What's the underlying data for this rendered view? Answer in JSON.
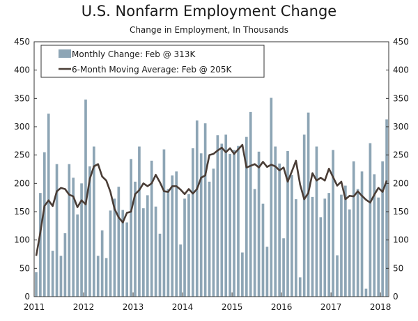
{
  "chart_data": {
    "type": "bar",
    "title": "U.S. Nonfarm Employment Change",
    "subtitle": "Change in Employment, In Thousands",
    "xlabel": "",
    "ylabel": "",
    "ylim": [
      0,
      450
    ],
    "yticks": [
      0,
      50,
      100,
      150,
      200,
      250,
      300,
      350,
      400,
      450
    ],
    "ytick_labels": [
      "0",
      "50",
      "100",
      "150",
      "200",
      "250",
      "300",
      "350",
      "400",
      "450"
    ],
    "xticks": [
      2011,
      2012,
      2013,
      2014,
      2015,
      2016,
      2017,
      2018
    ],
    "xtick_labels": [
      "2011",
      "2012",
      "2013",
      "2014",
      "2015",
      "2016",
      "2017",
      "2018"
    ],
    "x_start": "2011-01",
    "x_end": "2018-02",
    "grid": false,
    "legend_position": "top-left",
    "colors": {
      "bars": "#8da5b5",
      "line": "#4a3d36"
    },
    "series": [
      {
        "name": "Monthly Change: Feb @ 313K",
        "type": "bar",
        "values": [
          43,
          183,
          255,
          323,
          81,
          234,
          72,
          112,
          234,
          210,
          145,
          200,
          348,
          230,
          265,
          72,
          117,
          68,
          152,
          173,
          194,
          153,
          131,
          243,
          203,
          265,
          156,
          179,
          240,
          159,
          111,
          260,
          190,
          214,
          221,
          92,
          173,
          181,
          262,
          311,
          253,
          306,
          203,
          226,
          285,
          270,
          286,
          252,
          259,
          266,
          78,
          282,
          326,
          190,
          256,
          164,
          88,
          351,
          265,
          235,
          103,
          257,
          215,
          172,
          34,
          286,
          325,
          176,
          265,
          140,
          173,
          183,
          259,
          73,
          180,
          196,
          154,
          239,
          190,
          221,
          14,
          271,
          216,
          175,
          239,
          313
        ]
      },
      {
        "name": "6-Month Moving Average: Feb @ 205K",
        "type": "line",
        "values": [
          72,
          113,
          160,
          170,
          160,
          186,
          192,
          190,
          180,
          177,
          158,
          170,
          163,
          208,
          230,
          234,
          212,
          205,
          185,
          155,
          140,
          131,
          148,
          150,
          181,
          188,
          200,
          195,
          200,
          215,
          202,
          186,
          185,
          195,
          195,
          189,
          181,
          190,
          182,
          190,
          210,
          214,
          250,
          252,
          258,
          263,
          255,
          262,
          252,
          260,
          268,
          228,
          231,
          234,
          228,
          238,
          229,
          233,
          230,
          223,
          228,
          203,
          221,
          240,
          198,
          172,
          183,
          218,
          205,
          210,
          205,
          226,
          211,
          196,
          203,
          172,
          178,
          177,
          186,
          178,
          171,
          166,
          180,
          192,
          185,
          205
        ]
      }
    ]
  }
}
